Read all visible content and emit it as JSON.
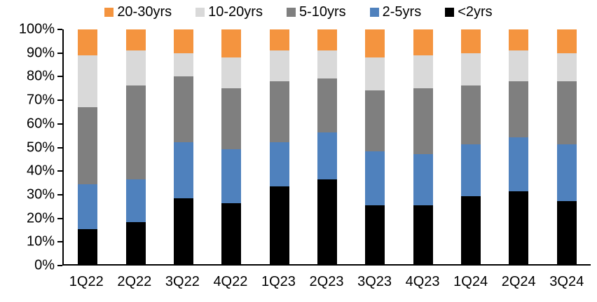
{
  "chart_data": {
    "type": "bar",
    "variant": "stacked-percent",
    "title": "",
    "xlabel": "",
    "ylabel": "",
    "ylim": [
      0,
      100
    ],
    "grid": false,
    "legend_position": "top",
    "axis_color": "#000000",
    "background_color": "#ffffff",
    "categories": [
      "1Q22",
      "2Q22",
      "3Q22",
      "4Q22",
      "1Q23",
      "2Q23",
      "3Q23",
      "4Q23",
      "1Q24",
      "2Q24",
      "3Q24"
    ],
    "series": [
      {
        "name": "<2yrs",
        "color": "#000000",
        "values": [
          15,
          18,
          28,
          26,
          33,
          36,
          25,
          25,
          29,
          31,
          27
        ]
      },
      {
        "name": "2-5yrs",
        "color": "#4F81BD",
        "values": [
          19,
          18,
          24,
          23,
          19,
          20,
          23,
          22,
          22,
          23,
          24
        ]
      },
      {
        "name": "5-10yrs",
        "color": "#7F7F7F",
        "values": [
          33,
          40,
          28,
          26,
          26,
          23,
          26,
          28,
          25,
          24,
          27
        ]
      },
      {
        "name": "10-20yrs",
        "color": "#D9D9D9",
        "values": [
          22,
          15,
          10,
          13,
          13,
          12,
          14,
          14,
          14,
          13,
          12
        ]
      },
      {
        "name": "20-30yrs",
        "color": "#F4943F",
        "values": [
          11,
          9,
          10,
          12,
          9,
          9,
          12,
          11,
          10,
          9,
          10
        ]
      }
    ],
    "legend_order": [
      "20-30yrs",
      "10-20yrs",
      "5-10yrs",
      "2-5yrs",
      "<2yrs"
    ],
    "y_tick_labels": [
      "100%",
      "90%",
      "80%",
      "70%",
      "60%",
      "50%",
      "40%",
      "30%",
      "20%",
      "10%",
      "0%"
    ]
  }
}
